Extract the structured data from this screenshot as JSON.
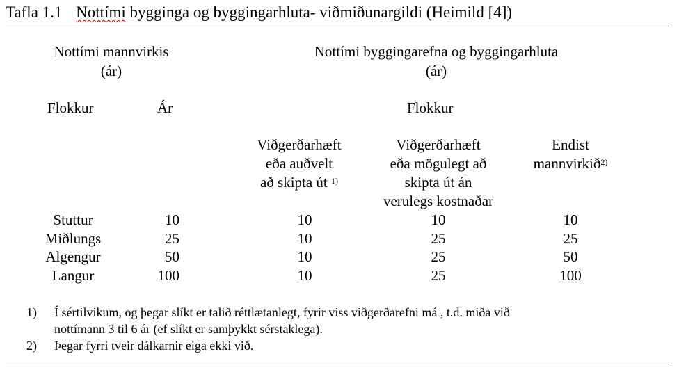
{
  "title": {
    "number": "Tafla 1.1",
    "word1": "Nottími",
    "rest": "bygginga og byggingarhluta- viðmiðunargildi (Heimild [4])"
  },
  "headers": {
    "group_left_line1": "Nottími mannvirkis",
    "group_left_line2": "(ár)",
    "group_right_line1": "Nottími byggingarefna og byggingarhluta",
    "group_right_line2": "(ár)",
    "flokkur_left": "Flokkur",
    "ar": "Ár",
    "flokkur_right": "Flokkur",
    "col3_lines": [
      "Viðgerðarhæft",
      "eða auðvelt",
      "að skipta út"
    ],
    "col3_sup": "1)",
    "col4_lines": [
      "Viðgerðarhæft",
      "eða mögulegt að",
      "skipta út án",
      "verulegs kostnaðar"
    ],
    "col5_lines": [
      "Endist",
      "mannvirkið"
    ],
    "col5_sup": "2)"
  },
  "rows": [
    {
      "flokkur": "Stuttur",
      "ar": "10",
      "c3": "10",
      "c4": "10",
      "c5": "10"
    },
    {
      "flokkur": "Miðlungs",
      "ar": "25",
      "c3": "10",
      "c4": "25",
      "c5": "25"
    },
    {
      "flokkur": "Algengur",
      "ar": "50",
      "c3": "10",
      "c4": "25",
      "c5": "50"
    },
    {
      "flokkur": "Langur",
      "ar": "100",
      "c3": "10",
      "c4": "25",
      "c5": "100"
    }
  ],
  "notes": [
    {
      "marker": "1)",
      "line1": "Í sértilvikum, og þegar slíkt er talið réttlætanlegt, fyrir viss viðgerðarefni má , t.d. miða við",
      "line2": "nottímann 3 til 6 ár (ef slíkt er samþykkt sérstaklega)."
    },
    {
      "marker": "2)",
      "line1": "Þegar fyrri tveir dálkarnir eiga ekki við.",
      "line2": ""
    }
  ]
}
